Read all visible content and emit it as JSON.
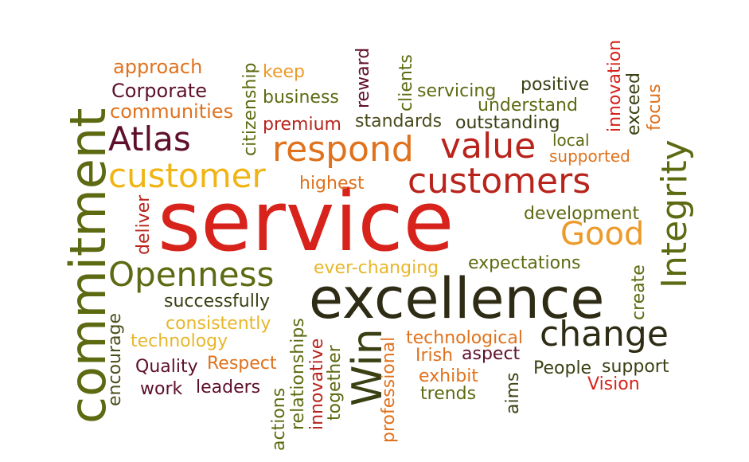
{
  "colors": {
    "olive": "#5e6a12",
    "dark_green": "#3b4013",
    "dark_olive": "#4c4d1e",
    "orange": "#e0721d",
    "light_orange": "#ec9a2a",
    "gold": "#f0b414",
    "yellow": "#e8b62a",
    "red": "#d7231c",
    "crimson": "#b8241c",
    "maroon": "#5e0f2c",
    "dark": "#2e2c14"
  },
  "words": [
    "service",
    "excellence",
    "commitment",
    "Integrity",
    "customers",
    "customer",
    "respond",
    "value",
    "Atlas",
    "Openness",
    "change",
    "Good",
    "Win",
    "approach",
    "Corporate",
    "communities",
    "keep",
    "business",
    "premium",
    "citizenship",
    "reward",
    "standards",
    "servicing",
    "clients",
    "positive",
    "understand",
    "outstanding",
    "innovation",
    "exceed",
    "focus",
    "local",
    "supported",
    "highest",
    "development",
    "deliver",
    "expectations",
    "ever-changing",
    "create",
    "successfully",
    "consistently",
    "technology",
    "encourage",
    "Quality",
    "Respect",
    "work",
    "leaders",
    "relationships",
    "actions",
    "innovative",
    "together",
    "professional",
    "technological",
    "Irish",
    "aspect",
    "exhibit",
    "trends",
    "aims",
    "People",
    "support",
    "Vision"
  ]
}
